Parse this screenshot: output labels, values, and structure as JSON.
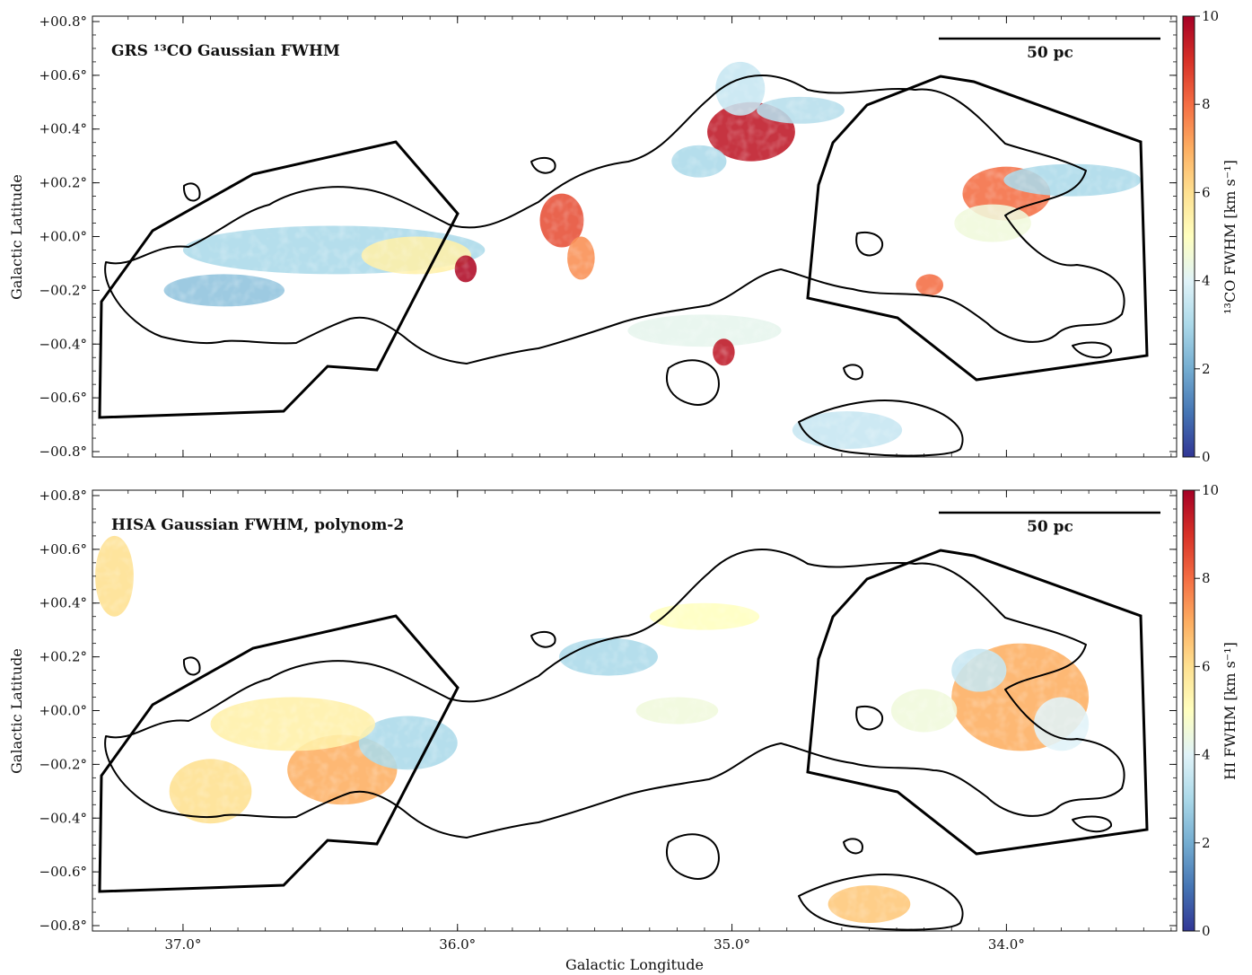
{
  "chart_data": [
    {
      "type": "heatmap",
      "title": "GRS ¹³CO Gaussian FWHM",
      "xlabel": "",
      "ylabel": "Galactic Latitude",
      "xlim": [
        37.33,
        33.38
      ],
      "ylim": [
        -0.82,
        0.82
      ],
      "x_ticks": [
        {
          "value": 37.0,
          "label": "37.0°"
        },
        {
          "value": 36.0,
          "label": "36.0°"
        },
        {
          "value": 35.0,
          "label": "35.0°"
        },
        {
          "value": 34.0,
          "label": "34.0°"
        }
      ],
      "y_ticks": [
        {
          "value": 0.8,
          "label": "+00.8°"
        },
        {
          "value": 0.6,
          "label": "+00.6°"
        },
        {
          "value": 0.4,
          "label": "+00.4°"
        },
        {
          "value": 0.2,
          "label": "+00.2°"
        },
        {
          "value": 0.0,
          "label": "+00.0°"
        },
        {
          "value": -0.2,
          "label": "−00.2°"
        },
        {
          "value": -0.4,
          "label": "−00.4°"
        },
        {
          "value": -0.6,
          "label": "−00.6°"
        },
        {
          "value": -0.8,
          "label": "−00.8°"
        }
      ],
      "scale_bar": "50 pc",
      "colorbar": {
        "label": "¹³CO FWHM [km s⁻¹]",
        "range": [
          0,
          10
        ],
        "ticks": [
          "0",
          "2",
          "4",
          "6",
          "8",
          "10"
        ],
        "colormap": "RdYlBu_r"
      },
      "blobs": [
        {
          "l": 36.45,
          "b": -0.05,
          "rx": 0.55,
          "ry": 0.09,
          "value": 3.0
        },
        {
          "l": 36.15,
          "b": -0.07,
          "rx": 0.2,
          "ry": 0.07,
          "value": 5.5
        },
        {
          "l": 36.85,
          "b": -0.2,
          "rx": 0.22,
          "ry": 0.06,
          "value": 2.5
        },
        {
          "l": 35.62,
          "b": 0.06,
          "rx": 0.08,
          "ry": 0.1,
          "value": 8.5
        },
        {
          "l": 35.55,
          "b": -0.08,
          "rx": 0.05,
          "ry": 0.08,
          "value": 7.5
        },
        {
          "l": 35.97,
          "b": -0.12,
          "rx": 0.04,
          "ry": 0.05,
          "value": 9.8
        },
        {
          "l": 34.93,
          "b": 0.39,
          "rx": 0.16,
          "ry": 0.11,
          "value": 9.5
        },
        {
          "l": 34.97,
          "b": 0.55,
          "rx": 0.09,
          "ry": 0.1,
          "value": 3.5
        },
        {
          "l": 34.75,
          "b": 0.47,
          "rx": 0.16,
          "ry": 0.05,
          "value": 3.2
        },
        {
          "l": 34.0,
          "b": 0.16,
          "rx": 0.16,
          "ry": 0.1,
          "value": 8.0
        },
        {
          "l": 33.76,
          "b": 0.21,
          "rx": 0.25,
          "ry": 0.06,
          "value": 3.0
        },
        {
          "l": 34.05,
          "b": 0.05,
          "rx": 0.14,
          "ry": 0.07,
          "value": 4.5
        },
        {
          "l": 34.28,
          "b": -0.18,
          "rx": 0.05,
          "ry": 0.04,
          "value": 8.0
        },
        {
          "l": 35.1,
          "b": -0.35,
          "rx": 0.28,
          "ry": 0.06,
          "value": 4.2
        },
        {
          "l": 34.58,
          "b": -0.72,
          "rx": 0.2,
          "ry": 0.07,
          "value": 3.5
        },
        {
          "l": 35.03,
          "b": -0.43,
          "rx": 0.04,
          "ry": 0.05,
          "value": 9.5
        },
        {
          "l": 35.12,
          "b": 0.28,
          "rx": 0.1,
          "ry": 0.06,
          "value": 3.0
        }
      ]
    },
    {
      "type": "heatmap",
      "title": "HISA Gaussian FWHM, polynom-2",
      "xlabel": "Galactic Longitude",
      "ylabel": "Galactic Latitude",
      "xlim": [
        37.33,
        33.38
      ],
      "ylim": [
        -0.82,
        0.82
      ],
      "x_ticks": [
        {
          "value": 37.0,
          "label": "37.0°"
        },
        {
          "value": 36.0,
          "label": "36.0°"
        },
        {
          "value": 35.0,
          "label": "35.0°"
        },
        {
          "value": 34.0,
          "label": "34.0°"
        }
      ],
      "y_ticks": [
        {
          "value": 0.8,
          "label": "+00.8°"
        },
        {
          "value": 0.6,
          "label": "+00.6°"
        },
        {
          "value": 0.4,
          "label": "+00.4°"
        },
        {
          "value": 0.2,
          "label": "+00.2°"
        },
        {
          "value": 0.0,
          "label": "+00.0°"
        },
        {
          "value": -0.2,
          "label": "−00.2°"
        },
        {
          "value": -0.4,
          "label": "−00.4°"
        },
        {
          "value": -0.6,
          "label": "−00.6°"
        },
        {
          "value": -0.8,
          "label": "−00.8°"
        }
      ],
      "scale_bar": "50 pc",
      "colorbar": {
        "label": "HI FWHM [km s⁻¹]",
        "range": [
          0,
          10
        ],
        "ticks": [
          "0",
          "2",
          "4",
          "6",
          "8",
          "10"
        ],
        "colormap": "RdYlBu_r"
      },
      "blobs": [
        {
          "l": 36.42,
          "b": -0.22,
          "rx": 0.2,
          "ry": 0.13,
          "value": 7.0
        },
        {
          "l": 36.18,
          "b": -0.12,
          "rx": 0.18,
          "ry": 0.1,
          "value": 3.0
        },
        {
          "l": 36.6,
          "b": -0.05,
          "rx": 0.3,
          "ry": 0.1,
          "value": 5.5
        },
        {
          "l": 36.9,
          "b": -0.3,
          "rx": 0.15,
          "ry": 0.12,
          "value": 6.0
        },
        {
          "l": 35.45,
          "b": 0.2,
          "rx": 0.18,
          "ry": 0.07,
          "value": 3.0
        },
        {
          "l": 33.95,
          "b": 0.05,
          "rx": 0.25,
          "ry": 0.2,
          "value": 7.0
        },
        {
          "l": 34.1,
          "b": 0.15,
          "rx": 0.1,
          "ry": 0.08,
          "value": 3.5
        },
        {
          "l": 33.8,
          "b": -0.05,
          "rx": 0.1,
          "ry": 0.1,
          "value": 4.0
        },
        {
          "l": 34.3,
          "b": 0.0,
          "rx": 0.12,
          "ry": 0.08,
          "value": 4.5
        },
        {
          "l": 34.5,
          "b": -0.72,
          "rx": 0.15,
          "ry": 0.07,
          "value": 6.5
        },
        {
          "l": 37.25,
          "b": 0.5,
          "rx": 0.07,
          "ry": 0.15,
          "value": 6.0
        },
        {
          "l": 35.1,
          "b": 0.35,
          "rx": 0.2,
          "ry": 0.05,
          "value": 5.0
        },
        {
          "l": 35.2,
          "b": 0.0,
          "rx": 0.15,
          "ry": 0.05,
          "value": 4.5
        }
      ]
    }
  ]
}
